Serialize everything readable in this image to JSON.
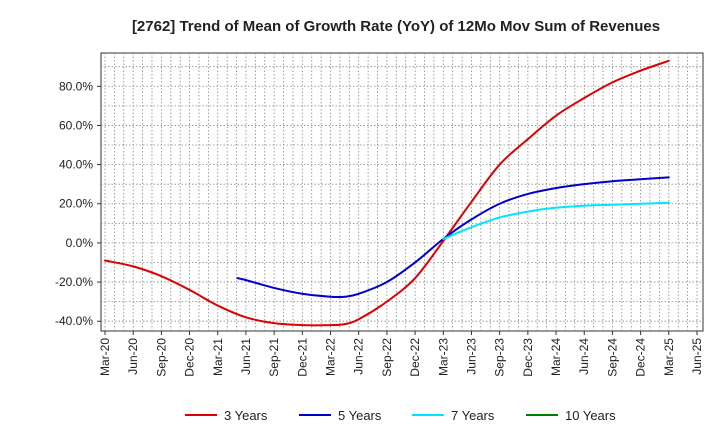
{
  "chart_data": {
    "type": "line",
    "title": "[2762]  Trend of Mean of Growth Rate (YoY) of 12Mo Mov Sum of Revenues",
    "xlabel": "",
    "ylabel": "",
    "ylim": [
      -45,
      97
    ],
    "y_ticks": [
      -40,
      -20,
      0,
      20,
      40,
      60,
      80
    ],
    "y_tick_labels": [
      "-40.0%",
      "-20.0%",
      "0.0%",
      "20.0%",
      "40.0%",
      "60.0%",
      "80.0%"
    ],
    "x_tick_labels": [
      "Mar-20",
      "Jun-20",
      "Sep-20",
      "Dec-20",
      "Mar-21",
      "Jun-21",
      "Sep-21",
      "Dec-21",
      "Mar-22",
      "Jun-22",
      "Sep-22",
      "Dec-22",
      "Mar-23",
      "Jun-23",
      "Sep-23",
      "Dec-23",
      "Mar-24",
      "Jun-24",
      "Sep-24",
      "Dec-24",
      "Mar-25",
      "Jun-25"
    ],
    "grid": true,
    "legend_position": "bottom",
    "series": [
      {
        "name": "3 Years",
        "color": "#dd0000",
        "x": [
          0,
          1,
          2,
          3,
          4,
          5,
          6,
          7,
          8,
          8.5,
          9,
          10,
          11,
          12,
          13,
          14,
          15,
          16,
          17,
          18,
          19,
          20
        ],
        "values": [
          -9,
          -12,
          -17,
          -24,
          -32,
          -38,
          -41,
          -42,
          -42,
          -41.5,
          -39,
          -30,
          -18,
          1,
          21,
          40,
          53,
          65,
          74,
          82,
          88,
          93
        ]
      },
      {
        "name": "5 Years",
        "color": "#0000cc",
        "x": [
          4.7,
          5,
          6,
          7,
          8,
          8.5,
          9,
          10,
          11,
          12,
          13,
          14,
          15,
          16,
          17,
          18,
          19,
          20
        ],
        "values": [
          -18,
          -19,
          -23,
          -26,
          -27.5,
          -27.5,
          -26,
          -20,
          -10,
          2,
          12,
          20,
          25,
          28,
          30,
          31.5,
          32.5,
          33.5
        ]
      },
      {
        "name": "7 Years",
        "color": "#00e5ff",
        "x": [
          12,
          13,
          14,
          15,
          16,
          17,
          18,
          19,
          20
        ],
        "values": [
          2,
          8,
          13,
          16,
          18,
          19,
          19.5,
          20,
          20.5
        ]
      },
      {
        "name": "10 Years",
        "color": "#008000",
        "x": [],
        "values": []
      }
    ]
  }
}
